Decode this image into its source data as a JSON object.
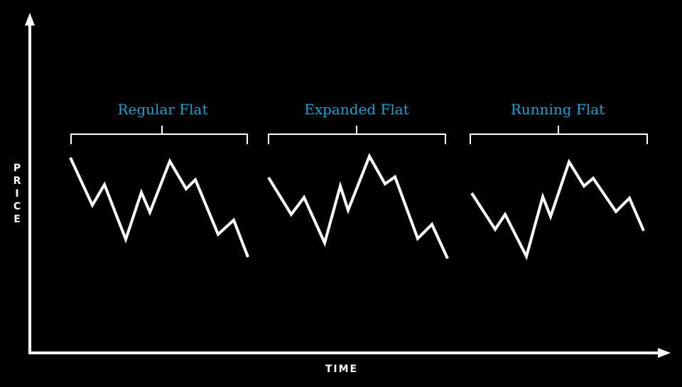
{
  "colors": {
    "background": "#000000",
    "line": "#ffffff",
    "title": "#1aa3d8"
  },
  "axes": {
    "x_label": "TIME",
    "y_label_letters": [
      "P",
      "R",
      "I",
      "C",
      "E"
    ]
  },
  "patterns": [
    {
      "id": "regular",
      "title": "Regular Flat"
    },
    {
      "id": "expanded",
      "title": "Expanded Flat"
    },
    {
      "id": "running",
      "title": "Running Flat"
    }
  ]
}
